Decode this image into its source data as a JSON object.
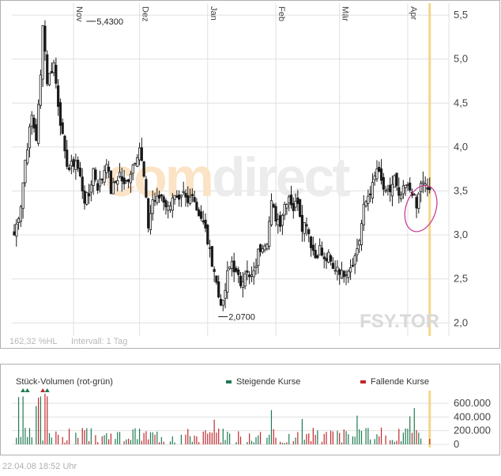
{
  "watermark": {
    "brand_left": "com",
    "brand_right": "direct"
  },
  "footer": {
    "timestamp": "22.04.08   18:52 Uhr"
  },
  "colors": {
    "up": "#1e7a52",
    "down": "#c0282d",
    "candle": "#1a1a1a",
    "grid": "#e0e0e0",
    "highlight_line": "#f5d58a",
    "circle": "#c8328c",
    "watermark_orange": "#fbe3c5",
    "watermark_grey": "#ececec",
    "frame": "#b0b0b0"
  },
  "chart_data": [
    {
      "type": "candlestick",
      "symbol": "FSY.TOR",
      "info_left": "162,32 %HL",
      "info_interval": "Intervall: 1 Tag",
      "x_ticks": [
        {
          "label": "Nov",
          "day": 27
        },
        {
          "label": "Dez",
          "day": 57
        },
        {
          "label": "Jan",
          "day": 88
        },
        {
          "label": "Feb",
          "day": 119
        },
        {
          "label": "Mär",
          "day": 148
        },
        {
          "label": "Apr",
          "day": 179
        }
      ],
      "y_ticks": [
        "5,5",
        "5,0",
        "4,5",
        "4,0",
        "3,5",
        "3,0",
        "2,5",
        "2,0"
      ],
      "y_tick_values": [
        5.5,
        5.0,
        4.5,
        4.0,
        3.5,
        3.0,
        2.5,
        2.0
      ],
      "ylim": [
        1.85,
        5.6
      ],
      "xlim": [
        0,
        197
      ],
      "annotations": [
        {
          "label": "5,4300",
          "day": 35,
          "value": 5.43
        },
        {
          "label": "2,0700",
          "day": 95,
          "value": 2.07
        }
      ],
      "highlight_day": 189,
      "close_anchors": [
        [
          0,
          3.0
        ],
        [
          3,
          3.35
        ],
        [
          5,
          3.85
        ],
        [
          8,
          4.35
        ],
        [
          10,
          4.1
        ],
        [
          12,
          4.8
        ],
        [
          13,
          5.43
        ],
        [
          15,
          4.75
        ],
        [
          18,
          4.95
        ],
        [
          20,
          4.5
        ],
        [
          23,
          3.9
        ],
        [
          25,
          3.75
        ],
        [
          28,
          3.85
        ],
        [
          30,
          3.65
        ],
        [
          32,
          3.4
        ],
        [
          34,
          3.45
        ],
        [
          36,
          3.75
        ],
        [
          38,
          3.55
        ],
        [
          40,
          3.65
        ],
        [
          42,
          3.85
        ],
        [
          44,
          3.5
        ],
        [
          46,
          3.6
        ],
        [
          48,
          3.7
        ],
        [
          50,
          3.55
        ],
        [
          52,
          3.65
        ],
        [
          54,
          3.8
        ],
        [
          57,
          4.0
        ],
        [
          59,
          3.65
        ],
        [
          61,
          3.1
        ],
        [
          63,
          3.4
        ],
        [
          65,
          3.4
        ],
        [
          67,
          3.45
        ],
        [
          70,
          3.3
        ],
        [
          72,
          3.45
        ],
        [
          75,
          3.35
        ],
        [
          77,
          3.45
        ],
        [
          79,
          3.35
        ],
        [
          81,
          3.5
        ],
        [
          83,
          3.3
        ],
        [
          85,
          3.2
        ],
        [
          87,
          3.05
        ],
        [
          89,
          2.8
        ],
        [
          91,
          2.6
        ],
        [
          93,
          2.3
        ],
        [
          95,
          2.2
        ],
        [
          97,
          2.55
        ],
        [
          99,
          2.7
        ],
        [
          101,
          2.55
        ],
        [
          103,
          2.45
        ],
        [
          105,
          2.6
        ],
        [
          107,
          2.5
        ],
        [
          109,
          2.55
        ],
        [
          111,
          2.8
        ],
        [
          113,
          2.9
        ],
        [
          115,
          2.95
        ],
        [
          117,
          3.35
        ],
        [
          119,
          3.2
        ],
        [
          121,
          3.15
        ],
        [
          123,
          3.35
        ],
        [
          125,
          3.45
        ],
        [
          127,
          3.3
        ],
        [
          129,
          3.4
        ],
        [
          131,
          3.1
        ],
        [
          133,
          3.15
        ],
        [
          135,
          2.9
        ],
        [
          137,
          2.75
        ],
        [
          139,
          2.85
        ],
        [
          141,
          2.7
        ],
        [
          143,
          2.75
        ],
        [
          145,
          2.6
        ],
        [
          147,
          2.65
        ],
        [
          149,
          2.55
        ],
        [
          151,
          2.6
        ],
        [
          153,
          2.65
        ],
        [
          155,
          2.75
        ],
        [
          157,
          2.95
        ],
        [
          159,
          3.3
        ],
        [
          161,
          3.45
        ],
        [
          163,
          3.55
        ],
        [
          165,
          3.75
        ],
        [
          167,
          3.6
        ],
        [
          169,
          3.45
        ],
        [
          171,
          3.5
        ],
        [
          173,
          3.65
        ],
        [
          175,
          3.4
        ],
        [
          178,
          3.55
        ],
        [
          181,
          3.5
        ],
        [
          183,
          3.3
        ],
        [
          185,
          3.6
        ],
        [
          188,
          3.52
        ],
        [
          189,
          3.52
        ]
      ]
    },
    {
      "type": "bar",
      "title": "Stück-Volumen (rot-grün)",
      "legend": [
        {
          "label": "Steigende Kurse",
          "color": "#1e7a52"
        },
        {
          "label": "Fallende Kurse",
          "color": "#c0282d"
        }
      ],
      "y_ticks": [
        "600.000",
        "400.000",
        "200.000",
        "0"
      ],
      "y_tick_values": [
        600000,
        400000,
        200000,
        0
      ],
      "ylim": [
        0,
        750000
      ],
      "spikes": [
        {
          "day": 2,
          "value": 690000,
          "dir": "up"
        },
        {
          "day": 4,
          "value": 700000,
          "dir": "up"
        },
        {
          "day": 10,
          "value": 560000,
          "dir": "up"
        },
        {
          "day": 11,
          "value": 680000,
          "dir": "down"
        },
        {
          "day": 12,
          "value": 700000,
          "dir": "up"
        },
        {
          "day": 14,
          "value": 740000,
          "dir": "down"
        },
        {
          "day": 15,
          "value": 700000,
          "dir": "down"
        },
        {
          "day": 91,
          "value": 360000,
          "dir": "down"
        },
        {
          "day": 117,
          "value": 500000,
          "dir": "up"
        },
        {
          "day": 131,
          "value": 370000,
          "dir": "up"
        },
        {
          "day": 156,
          "value": 420000,
          "dir": "up"
        },
        {
          "day": 180,
          "value": 410000,
          "dir": "up"
        },
        {
          "day": 182,
          "value": 530000,
          "dir": "up"
        }
      ],
      "markers": [
        {
          "day": 4,
          "dir": "up"
        },
        {
          "day": 6,
          "dir": "up"
        },
        {
          "day": 13,
          "dir": "down"
        },
        {
          "day": 15,
          "dir": "up"
        }
      ]
    }
  ]
}
